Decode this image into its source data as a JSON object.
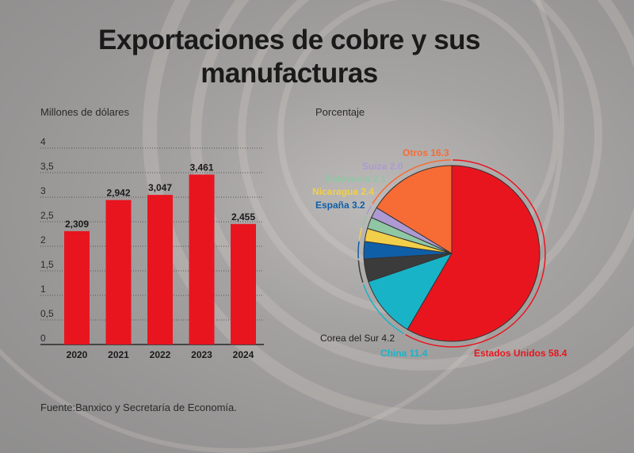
{
  "title": "Exportaciones de cobre y sus manufacturas",
  "source": "Fuente:Banxico y Secretaría de Economía.",
  "colors": {
    "bar": "#e8151f",
    "us": "#e8151f",
    "china": "#19b3c8",
    "korea": "#3b3b3b",
    "spain": "#0f5fa8",
    "nicaragua": "#f2cf4a",
    "slovenia": "#8fc7a4",
    "switzerland": "#ad9ad2",
    "others": "#f76b35"
  },
  "chart_data": [
    {
      "type": "bar",
      "title": "Millones de dólares",
      "categories": [
        "2020",
        "2021",
        "2022",
        "2023",
        "2024"
      ],
      "values": [
        2.309,
        2.942,
        3.047,
        3.461,
        2.455
      ],
      "value_labels": [
        "2,309",
        "2,942",
        "3,047",
        "3,461",
        "2,455"
      ],
      "ylim": [
        0,
        4
      ],
      "yticks": [
        "0",
        "0,5",
        "1",
        "1,5",
        "2",
        "2,5",
        "3",
        "3,5",
        "4"
      ],
      "grid": true
    },
    {
      "type": "pie",
      "title": "Porcentaje",
      "slices": [
        {
          "label": "Estados Unidos",
          "value": 58.4,
          "display": "58.4",
          "color": "#e8151f"
        },
        {
          "label": "China",
          "value": 11.4,
          "display": "11.4",
          "color": "#19b3c8"
        },
        {
          "label": "Corea del Sur",
          "value": 4.2,
          "display": "4.2",
          "color": "#3b3b3b"
        },
        {
          "label": "España",
          "value": 3.2,
          "display": "3.2",
          "color": "#0f5fa8"
        },
        {
          "label": "Nicaragua",
          "value": 2.4,
          "display": "2.4",
          "color": "#f2cf4a"
        },
        {
          "label": "Eslovenia",
          "value": 2.1,
          "display": "2.1",
          "color": "#8fc7a4"
        },
        {
          "label": "Suiza",
          "value": 2.0,
          "display": "2.0",
          "color": "#ad9ad2"
        },
        {
          "label": "Otros",
          "value": 16.3,
          "display": "16.3",
          "color": "#f76b35"
        }
      ]
    }
  ]
}
